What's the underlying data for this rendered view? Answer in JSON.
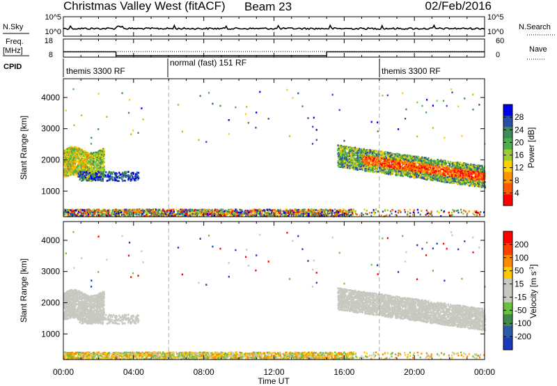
{
  "header": {
    "station": "Christmas Valley West (fitACF)",
    "beam": "Beam 23",
    "date": "02/Feb/2016"
  },
  "top_panels": {
    "nsky_label": "N.Sky",
    "nsky_ticks": [
      "10^5",
      "10^0"
    ],
    "nsearch_label": "N.Search",
    "nsearch_ticks": [
      "10^5",
      "10^0"
    ],
    "freq_label": "Freq.",
    "freq_unit": "[MHz]",
    "freq_ticks": [
      "18",
      "8"
    ],
    "nave_label": "Nave",
    "nave_ticks": [
      "60",
      "0"
    ],
    "cpid_label": "CPID",
    "modes": [
      {
        "name": "themis 3300 RF",
        "start_h": 0
      },
      {
        "name": "normal (fast) 151 RF",
        "start_h": 6
      },
      {
        "name": "themis 3300 RF",
        "start_h": 18
      }
    ]
  },
  "x_axis": {
    "label": "Time UT",
    "ticks": [
      "00:00",
      "04:00",
      "08:00",
      "12:00",
      "16:00",
      "20:00",
      "00:00"
    ],
    "range_h": [
      0,
      24
    ]
  },
  "power_panel": {
    "ylabel": "Slant Range [km]",
    "yticks": [
      "4000",
      "3000",
      "2000",
      "1000"
    ],
    "colorbar_label": "Power [dB]",
    "colorbar_ticks": [
      "28",
      "24",
      "20",
      "16",
      "12",
      "8",
      "4"
    ],
    "colors": [
      "#0000ee",
      "#2a4ea8",
      "#3f8a5a",
      "#4bb04b",
      "#9ccc2e",
      "#ffd000",
      "#ff9400",
      "#ff5a00",
      "#ff0000"
    ]
  },
  "velocity_panel": {
    "ylabel": "Slant Range [km]",
    "yticks": [
      "4000",
      "3000",
      "2000",
      "1000"
    ],
    "colorbar_label": "Velocity [m s",
    "colorbar_unit_sup": "-1",
    "colorbar_unit_end": "]",
    "colorbar_ticks": [
      "200",
      "100",
      "50",
      "15",
      "-15",
      "-50",
      "-100",
      "-200"
    ],
    "colors": [
      "#1a3ab8",
      "#2c5aa8",
      "#3f8a4a",
      "#6cc040",
      "#c8c8c0",
      "#c8c8c0",
      "#ffc800",
      "#ff8a00",
      "#ff4000",
      "#ff0000"
    ]
  },
  "chart_data": {
    "type": "heatmap",
    "x_range_h": [
      0,
      24
    ],
    "y_range_km": [
      180,
      4600
    ],
    "scatter_regions": [
      {
        "name": "early",
        "t0": 0.0,
        "t1": 2.3,
        "r0": 1500,
        "r1": 2400,
        "power": "green/yellow",
        "velocity": "grey"
      },
      {
        "name": "evening-arc",
        "t0": 15.5,
        "t1": 24.0,
        "r_start": 2100,
        "r_end": 1500,
        "power": "red/orange",
        "velocity": "grey"
      },
      {
        "name": "ground-scatter",
        "t0": 0.0,
        "t1": 24.0,
        "r0": 200,
        "r1": 400,
        "power": "mixed",
        "velocity": "green/orange"
      }
    ]
  }
}
